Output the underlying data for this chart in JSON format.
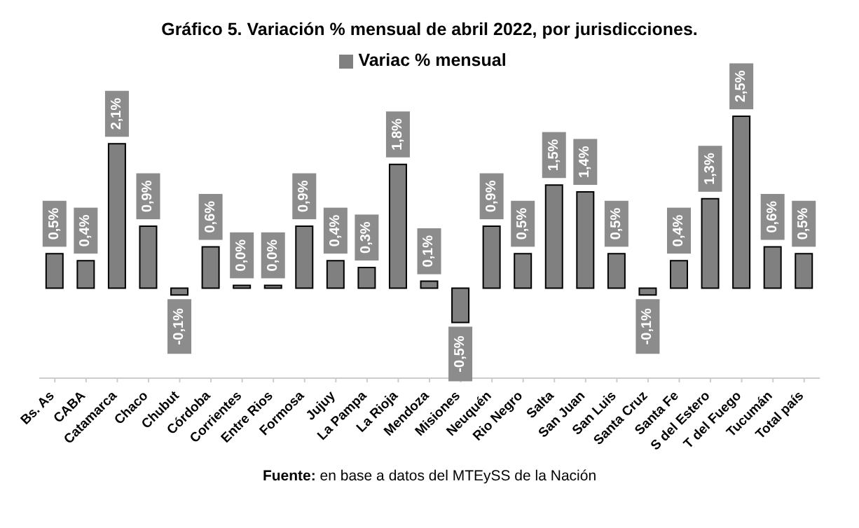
{
  "chart_data": {
    "type": "bar",
    "title": "Gráfico 5. Variación % mensual de abril 2022, por jurisdicciones.",
    "categories": [
      "Bs. As",
      "CABA",
      "Catamarca",
      "Chaco",
      "Chubut",
      "Córdoba",
      "Corrientes",
      "Entre Rios",
      "Formosa",
      "Jujuy",
      "La Pampa",
      "La Rioja",
      "Mendoza",
      "Misiones",
      "Neuquén",
      "Rio Negro",
      "Salta",
      "San Juan",
      "San Luis",
      "Santa Cruz",
      "Santa Fe",
      "S del Estero",
      "T del Fuego",
      "Tucumán",
      "Total país"
    ],
    "series": [
      {
        "name": "Variac % mensual",
        "color": "#808080",
        "values": [
          0.5,
          0.4,
          2.1,
          0.9,
          -0.1,
          0.6,
          0.0,
          0.0,
          0.9,
          0.4,
          0.3,
          1.8,
          0.1,
          -0.5,
          0.9,
          0.5,
          1.5,
          1.4,
          0.5,
          -0.1,
          0.4,
          1.3,
          2.5,
          0.6,
          0.5
        ],
        "value_labels": [
          "0,5%",
          "0,4%",
          "2,1%",
          "0,9%",
          "-0,1%",
          "0,6%",
          "0,0%",
          "0,0%",
          "0,9%",
          "0,4%",
          "0,3%",
          "1,8%",
          "0,1%",
          "-0,5%",
          "0,9%",
          "0,5%",
          "1,5%",
          "1,4%",
          "0,5%",
          "-0,1%",
          "0,4%",
          "1,3%",
          "2,5%",
          "0,6%",
          "0,5%"
        ]
      }
    ],
    "legend": "top",
    "annotations": [
      "Fuente: en base a datos del MTEySS de la Nación"
    ]
  }
}
